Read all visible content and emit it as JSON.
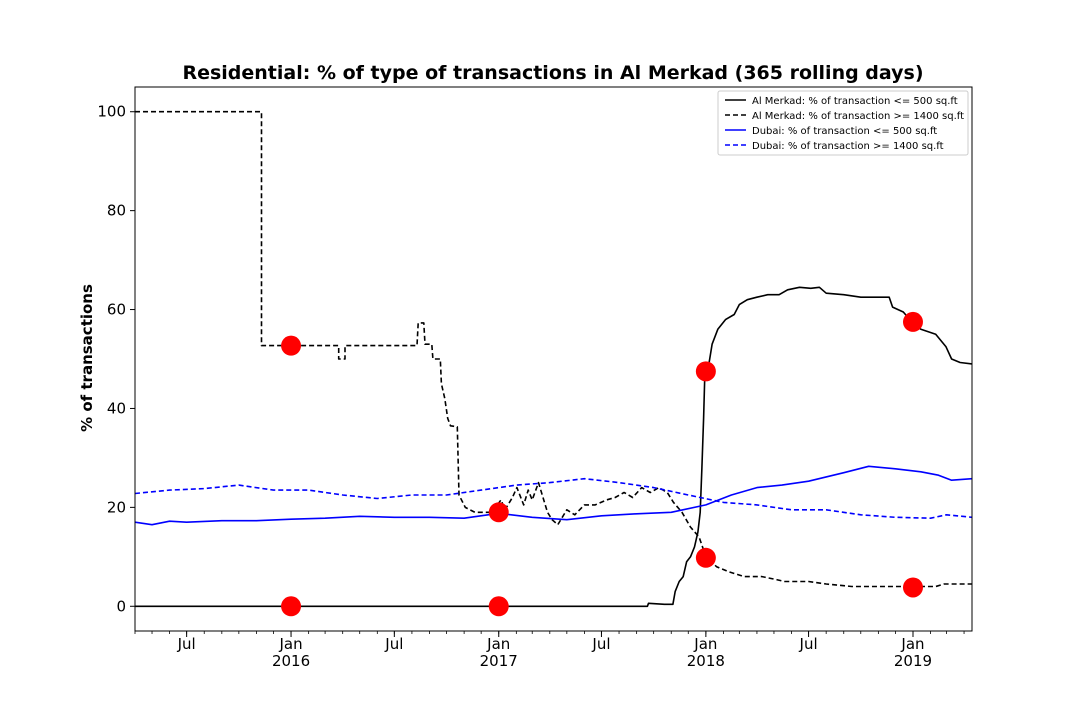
{
  "chart_data": {
    "type": "line",
    "title": "Residential: % of type of transactions in Al Merkad (365 rolling days)",
    "xlabel": "",
    "ylabel": "% of transactions",
    "x_range": [
      "2015-04-01",
      "2019-04-15"
    ],
    "ylim": [
      -5,
      105
    ],
    "y_ticks": [
      0,
      20,
      40,
      60,
      80,
      100
    ],
    "x_ticks": [
      {
        "date": "2015-07-01",
        "label": "Jul",
        "sub": ""
      },
      {
        "date": "2016-01-01",
        "label": "Jan",
        "sub": "2016"
      },
      {
        "date": "2016-07-01",
        "label": "Jul",
        "sub": ""
      },
      {
        "date": "2017-01-01",
        "label": "Jan",
        "sub": "2017"
      },
      {
        "date": "2017-07-01",
        "label": "Jul",
        "sub": ""
      },
      {
        "date": "2018-01-01",
        "label": "Jan",
        "sub": "2018"
      },
      {
        "date": "2018-07-01",
        "label": "Jul",
        "sub": ""
      },
      {
        "date": "2019-01-01",
        "label": "Jan",
        "sub": "2019"
      }
    ],
    "grid": false,
    "legend_position": "top-right",
    "series": [
      {
        "name": "Al Merkad: % of transaction <= 500 sq.ft",
        "color": "#000000",
        "dash": "solid",
        "points": [
          [
            "2015-04-01",
            0
          ],
          [
            "2017-09-20",
            0
          ],
          [
            "2017-09-22",
            0.6
          ],
          [
            "2017-10-20",
            0.4
          ],
          [
            "2017-11-04",
            0.4
          ],
          [
            "2017-11-08",
            3
          ],
          [
            "2017-11-15",
            5
          ],
          [
            "2017-11-22",
            6
          ],
          [
            "2017-11-28",
            9
          ],
          [
            "2017-12-05",
            10
          ],
          [
            "2017-12-12",
            12
          ],
          [
            "2017-12-18",
            15
          ],
          [
            "2017-12-22",
            19
          ],
          [
            "2017-12-25",
            28
          ],
          [
            "2017-12-28",
            38
          ],
          [
            "2017-12-30",
            46
          ],
          [
            "2018-01-05",
            48
          ],
          [
            "2018-01-12",
            53
          ],
          [
            "2018-01-22",
            56
          ],
          [
            "2018-02-05",
            58
          ],
          [
            "2018-02-20",
            59
          ],
          [
            "2018-03-01",
            61
          ],
          [
            "2018-03-15",
            62
          ],
          [
            "2018-04-01",
            62.5
          ],
          [
            "2018-04-20",
            63
          ],
          [
            "2018-05-10",
            63
          ],
          [
            "2018-05-25",
            64
          ],
          [
            "2018-06-15",
            64.5
          ],
          [
            "2018-07-05",
            64.3
          ],
          [
            "2018-07-20",
            64.5
          ],
          [
            "2018-08-01",
            63.3
          ],
          [
            "2018-09-01",
            63
          ],
          [
            "2018-10-01",
            62.5
          ],
          [
            "2018-11-20",
            62.5
          ],
          [
            "2018-11-26",
            60.5
          ],
          [
            "2018-12-15",
            59.5
          ],
          [
            "2018-12-30",
            57.5
          ],
          [
            "2019-01-15",
            56
          ],
          [
            "2019-02-10",
            55
          ],
          [
            "2019-02-28",
            52.5
          ],
          [
            "2019-03-10",
            50
          ],
          [
            "2019-03-25",
            49.3
          ],
          [
            "2019-04-15",
            49
          ]
        ]
      },
      {
        "name": "Al Merkad: % of transaction >= 1400 sq.ft",
        "color": "#000000",
        "dash": "dashed",
        "points": [
          [
            "2015-04-01",
            100
          ],
          [
            "2015-11-10",
            100
          ],
          [
            "2015-11-10",
            52.7
          ],
          [
            "2016-03-25",
            52.7
          ],
          [
            "2016-03-25",
            50
          ],
          [
            "2016-04-05",
            50
          ],
          [
            "2016-04-05",
            52.7
          ],
          [
            "2016-08-10",
            52.7
          ],
          [
            "2016-08-12",
            57.3
          ],
          [
            "2016-08-22",
            57.3
          ],
          [
            "2016-08-24",
            53
          ],
          [
            "2016-09-05",
            53
          ],
          [
            "2016-09-07",
            50
          ],
          [
            "2016-09-20",
            50
          ],
          [
            "2016-09-22",
            45
          ],
          [
            "2016-09-28",
            42
          ],
          [
            "2016-10-03",
            38
          ],
          [
            "2016-10-08",
            36.5
          ],
          [
            "2016-10-20",
            36.3
          ],
          [
            "2016-10-23",
            22.5
          ],
          [
            "2016-11-03",
            20
          ],
          [
            "2016-11-20",
            19
          ],
          [
            "2016-12-20",
            19
          ],
          [
            "2017-01-05",
            21.5
          ],
          [
            "2017-01-12",
            19.5
          ],
          [
            "2017-01-25",
            22
          ],
          [
            "2017-02-02",
            24
          ],
          [
            "2017-02-14",
            20.5
          ],
          [
            "2017-02-22",
            23.5
          ],
          [
            "2017-03-01",
            21.5
          ],
          [
            "2017-03-12",
            25
          ],
          [
            "2017-03-20",
            22
          ],
          [
            "2017-03-28",
            19
          ],
          [
            "2017-04-05",
            17.5
          ],
          [
            "2017-04-15",
            16.5
          ],
          [
            "2017-05-01",
            19.5
          ],
          [
            "2017-05-15",
            18.5
          ],
          [
            "2017-06-01",
            20.5
          ],
          [
            "2017-06-20",
            20.5
          ],
          [
            "2017-07-10",
            21.5
          ],
          [
            "2017-07-25",
            22
          ],
          [
            "2017-08-10",
            23
          ],
          [
            "2017-08-25",
            22
          ],
          [
            "2017-09-10",
            24
          ],
          [
            "2017-09-25",
            23
          ],
          [
            "2017-10-10",
            24
          ],
          [
            "2017-10-25",
            23
          ],
          [
            "2017-11-05",
            21
          ],
          [
            "2017-11-20",
            19
          ],
          [
            "2017-12-05",
            16
          ],
          [
            "2017-12-20",
            14
          ],
          [
            "2018-01-01",
            10
          ],
          [
            "2018-01-20",
            8
          ],
          [
            "2018-02-10",
            7
          ],
          [
            "2018-03-10",
            6
          ],
          [
            "2018-04-10",
            6
          ],
          [
            "2018-05-01",
            5.5
          ],
          [
            "2018-05-20",
            5
          ],
          [
            "2018-07-01",
            5
          ],
          [
            "2018-08-01",
            4.5
          ],
          [
            "2018-09-15",
            4
          ],
          [
            "2018-12-20",
            4
          ],
          [
            "2019-01-01",
            4
          ],
          [
            "2019-02-10",
            4
          ],
          [
            "2019-02-25",
            4.5
          ],
          [
            "2019-04-15",
            4.5
          ]
        ]
      },
      {
        "name": "Dubai: % of transaction <= 500 sq.ft",
        "color": "#0000ff",
        "dash": "solid",
        "points": [
          [
            "2015-04-01",
            17
          ],
          [
            "2015-05-01",
            16.5
          ],
          [
            "2015-06-01",
            17.2
          ],
          [
            "2015-07-01",
            17
          ],
          [
            "2015-09-01",
            17.3
          ],
          [
            "2015-11-01",
            17.3
          ],
          [
            "2016-01-01",
            17.6
          ],
          [
            "2016-03-01",
            17.8
          ],
          [
            "2016-05-01",
            18.2
          ],
          [
            "2016-07-01",
            18
          ],
          [
            "2016-09-01",
            18
          ],
          [
            "2016-11-01",
            17.8
          ],
          [
            "2017-01-01",
            18.8
          ],
          [
            "2017-03-01",
            18
          ],
          [
            "2017-05-01",
            17.5
          ],
          [
            "2017-07-01",
            18.3
          ],
          [
            "2017-09-01",
            18.7
          ],
          [
            "2017-11-01",
            19
          ],
          [
            "2018-01-01",
            20.5
          ],
          [
            "2018-02-15",
            22.5
          ],
          [
            "2018-04-01",
            24
          ],
          [
            "2018-05-15",
            24.5
          ],
          [
            "2018-07-01",
            25.3
          ],
          [
            "2018-09-01",
            27
          ],
          [
            "2018-10-15",
            28.3
          ],
          [
            "2018-12-01",
            27.8
          ],
          [
            "2019-01-15",
            27.2
          ],
          [
            "2019-02-15",
            26.5
          ],
          [
            "2019-03-10",
            25.5
          ],
          [
            "2019-04-15",
            25.8
          ]
        ]
      },
      {
        "name": "Dubai: % of transaction >= 1400 sq.ft",
        "color": "#0000ff",
        "dash": "dashed",
        "points": [
          [
            "2015-04-01",
            22.8
          ],
          [
            "2015-06-01",
            23.5
          ],
          [
            "2015-08-01",
            23.8
          ],
          [
            "2015-10-01",
            24.5
          ],
          [
            "2015-12-01",
            23.5
          ],
          [
            "2016-02-01",
            23.5
          ],
          [
            "2016-04-01",
            22.5
          ],
          [
            "2016-06-01",
            21.8
          ],
          [
            "2016-08-01",
            22.5
          ],
          [
            "2016-10-01",
            22.5
          ],
          [
            "2016-12-01",
            23.5
          ],
          [
            "2017-02-01",
            24.5
          ],
          [
            "2017-04-01",
            25
          ],
          [
            "2017-06-01",
            25.8
          ],
          [
            "2017-08-01",
            25
          ],
          [
            "2017-10-01",
            24
          ],
          [
            "2017-12-01",
            22.5
          ],
          [
            "2018-02-01",
            21
          ],
          [
            "2018-04-01",
            20.5
          ],
          [
            "2018-06-01",
            19.5
          ],
          [
            "2018-08-01",
            19.5
          ],
          [
            "2018-10-01",
            18.5
          ],
          [
            "2018-12-01",
            18
          ],
          [
            "2019-02-01",
            17.8
          ],
          [
            "2019-03-01",
            18.5
          ],
          [
            "2019-04-15",
            18
          ]
        ]
      }
    ],
    "markers": {
      "color": "#ff0000",
      "points": [
        [
          "2016-01-01",
          52.7
        ],
        [
          "2016-01-01",
          0
        ],
        [
          "2017-01-01",
          19
        ],
        [
          "2017-01-01",
          0
        ],
        [
          "2018-01-01",
          47.5
        ],
        [
          "2018-01-01",
          9.8
        ],
        [
          "2019-01-01",
          57.5
        ],
        [
          "2019-01-01",
          3.8
        ]
      ]
    }
  }
}
